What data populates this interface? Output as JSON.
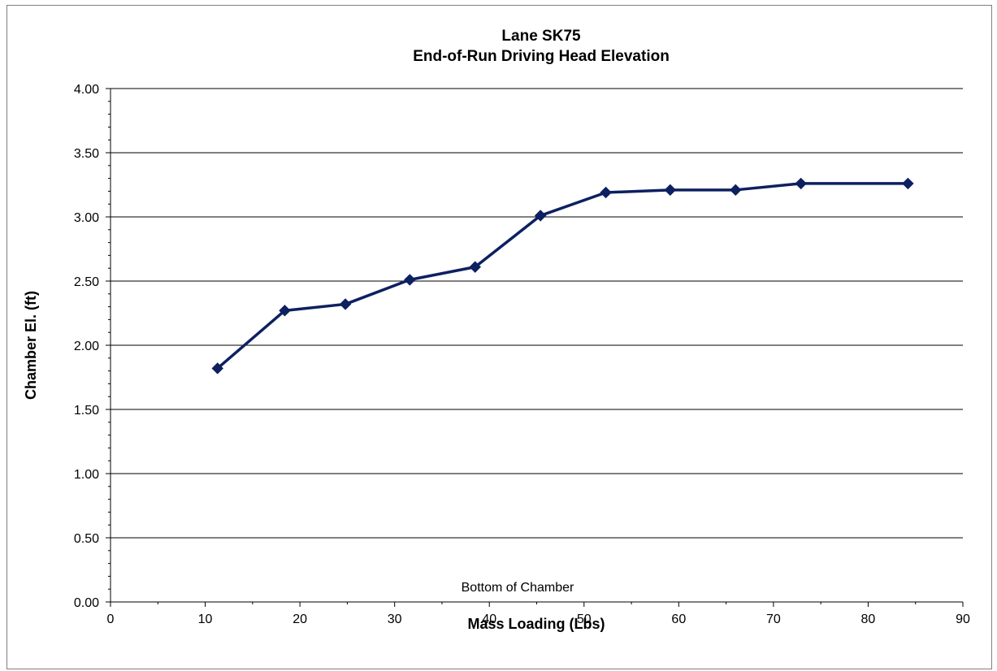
{
  "chart_data": {
    "type": "line",
    "title": "Lane SK75",
    "subtitle": "End-of-Run Driving Head Elevation",
    "xlabel": "Mass Loading (Lbs)",
    "ylabel": "Chamber El. (ft)",
    "xlim": [
      0,
      90
    ],
    "ylim": [
      0,
      4
    ],
    "x_ticks": [
      0,
      10,
      20,
      30,
      40,
      50,
      60,
      70,
      80,
      90
    ],
    "y_ticks": [
      0,
      0.5,
      1,
      1.5,
      2,
      2.5,
      3,
      3.5,
      4
    ],
    "x_tick_labels": [
      "0",
      "10",
      "20",
      "30",
      "40",
      "50",
      "60",
      "70",
      "80",
      "90"
    ],
    "y_tick_labels": [
      "0.00",
      "0.50",
      "1.00",
      "1.50",
      "2.00",
      "2.50",
      "3.00",
      "3.50",
      "4.00"
    ],
    "grid": "horizontal major",
    "annotation": "Bottom of Chamber",
    "line_color": "#0d2060",
    "series": [
      {
        "marker": "diamond",
        "points": [
          {
            "x": 11.3,
            "y": 1.82
          },
          {
            "x": 18.4,
            "y": 2.27
          },
          {
            "x": 24.8,
            "y": 2.32
          },
          {
            "x": 31.6,
            "y": 2.51
          },
          {
            "x": 38.5,
            "y": 2.61
          },
          {
            "x": 45.4,
            "y": 3.01
          },
          {
            "x": 52.3,
            "y": 3.19
          },
          {
            "x": 59.1,
            "y": 3.21
          },
          {
            "x": 66.0,
            "y": 3.21
          },
          {
            "x": 72.9,
            "y": 3.26
          },
          {
            "x": 84.2,
            "y": 3.26
          }
        ]
      }
    ]
  }
}
